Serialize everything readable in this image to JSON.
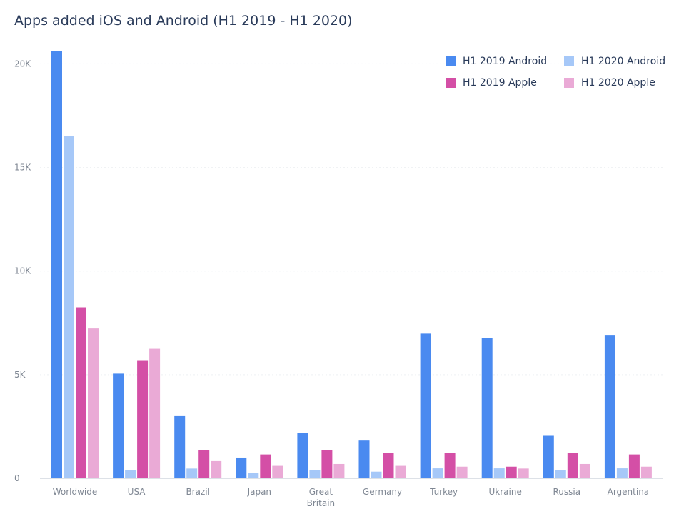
{
  "chart_data": {
    "type": "bar",
    "title": "Apps added iOS and Android (H1 2019 - H1 2020)",
    "categories": [
      "Worldwide",
      "USA",
      "Brazil",
      "Japan",
      "Great Britain",
      "Germany",
      "Turkey",
      "Ukraine",
      "Russia",
      "Argentina"
    ],
    "category_lines": [
      [
        "Worldwide"
      ],
      [
        "USA"
      ],
      [
        "Brazil"
      ],
      [
        "Japan"
      ],
      [
        "Great",
        "Britain"
      ],
      [
        "Germany"
      ],
      [
        "Turkey"
      ],
      [
        "Ukraine"
      ],
      [
        "Russia"
      ],
      [
        "Argentina"
      ]
    ],
    "series": [
      {
        "name": "H1 2019 Android",
        "color": "#4a8af0",
        "values": [
          20600,
          5050,
          3000,
          1000,
          2200,
          1820,
          6980,
          6780,
          2050,
          6920
        ]
      },
      {
        "name": "H1 2020 Android",
        "color": "#a6c8f8",
        "values": [
          16500,
          380,
          470,
          270,
          380,
          320,
          480,
          480,
          380,
          480
        ]
      },
      {
        "name": "H1 2019 Apple",
        "color": "#d44fa6",
        "values": [
          8250,
          5700,
          1370,
          1150,
          1370,
          1230,
          1230,
          560,
          1230,
          1150
        ]
      },
      {
        "name": "H1 2020 Apple",
        "color": "#eaaad6",
        "values": [
          7230,
          6250,
          830,
          600,
          690,
          600,
          560,
          470,
          690,
          560
        ]
      }
    ],
    "yticks": [
      {
        "value": 0,
        "label": "0"
      },
      {
        "value": 5000,
        "label": "5K"
      },
      {
        "value": 10000,
        "label": "10K"
      },
      {
        "value": 15000,
        "label": "15K"
      },
      {
        "value": 20000,
        "label": "20K"
      }
    ],
    "ylim": [
      0,
      20600
    ],
    "xlabel": "",
    "ylabel": "",
    "grid": true,
    "legend_position": "top-right"
  }
}
